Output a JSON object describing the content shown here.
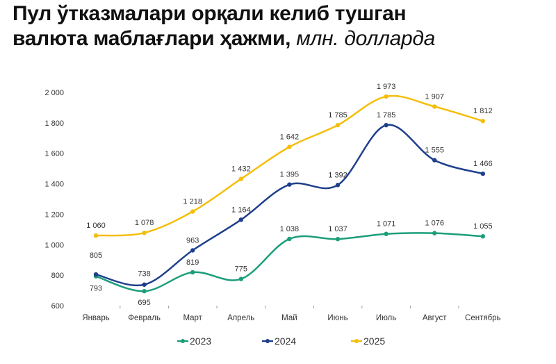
{
  "title": {
    "bold_line1": "Пул ўтказмалари орқали келиб тушган",
    "bold_line2": "валюта маблағлари ҳажми,",
    "unit": "млн. долларда"
  },
  "chart_data": {
    "type": "line",
    "title": "Пул ўтказмалари орқали келиб тушган валюта маблағлари ҳажми, млн. долларда",
    "xlabel": "",
    "ylabel": "",
    "categories": [
      "Январь",
      "Февраль",
      "Март",
      "Апрель",
      "Май",
      "Июнь",
      "Июль",
      "Август",
      "Сентябрь"
    ],
    "ylim": [
      600,
      2000
    ],
    "yticks": [
      600,
      800,
      1000,
      1200,
      1400,
      1600,
      1800,
      2000
    ],
    "ytick_labels": [
      "600",
      "800",
      "1 000",
      "1 200",
      "1 400",
      "1 600",
      "1 800",
      "2 000"
    ],
    "grid": false,
    "legend": "bottom",
    "series": [
      {
        "name": "2023",
        "color": "#1b9e7b",
        "values": [
          793,
          695,
          819,
          775,
          1038,
          1037,
          1071,
          1076,
          1055
        ],
        "labels": [
          "793",
          "695",
          "819",
          "775",
          "1 038",
          "1 037",
          "1 071",
          "1 076",
          "1 055"
        ]
      },
      {
        "name": "2024",
        "color": "#1f3f8c",
        "values": [
          805,
          738,
          963,
          1164,
          1395,
          1392,
          1785,
          1555,
          1466
        ],
        "labels": [
          "805",
          "738",
          "963",
          "1 164",
          "1 395",
          "1 392",
          "1 785",
          "1 555",
          "1 466"
        ]
      },
      {
        "name": "2025",
        "color": "#f5be0b",
        "values": [
          1060,
          1078,
          1218,
          1432,
          1642,
          1785,
          1973,
          1907,
          1812
        ],
        "labels": [
          "1 060",
          "1 078",
          "1 218",
          "1 432",
          "1 642",
          "1 785",
          "1 973",
          "1 907",
          "1 812"
        ]
      }
    ]
  }
}
